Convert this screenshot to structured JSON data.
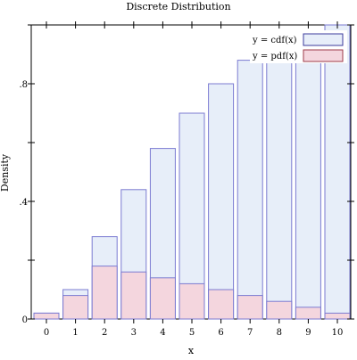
{
  "chart_data": {
    "type": "bar",
    "title": "Discrete Distribution",
    "xlabel": "x",
    "ylabel": "Density",
    "categories": [
      "0",
      "1",
      "2",
      "3",
      "4",
      "5",
      "6",
      "7",
      "8",
      "9",
      "10"
    ],
    "y_ticks": [
      {
        "value": 0,
        "label": "0"
      },
      {
        "value": 0.4,
        "label": ".4"
      },
      {
        "value": 0.8,
        "label": ".8"
      }
    ],
    "ylim": [
      0,
      1.0
    ],
    "legend_position": "top-right",
    "series": [
      {
        "name": "y = cdf(x)",
        "values": [
          0.02,
          0.1,
          0.28,
          0.44,
          0.58,
          0.7,
          0.8,
          0.88,
          0.94,
          0.98,
          1.0
        ],
        "fill": "#e7eef9",
        "stroke": "#7b7bd1"
      },
      {
        "name": "y = pdf(x)",
        "values": [
          0.02,
          0.08,
          0.18,
          0.16,
          0.14,
          0.12,
          0.1,
          0.08,
          0.06,
          0.04,
          0.02
        ],
        "fill": "#f4d6de",
        "stroke": "#7b7bd1"
      }
    ]
  }
}
